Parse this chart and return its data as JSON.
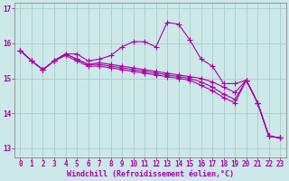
{
  "xlabel": "Windchill (Refroidissement éolien,°C)",
  "x": [
    0,
    1,
    2,
    3,
    4,
    5,
    6,
    7,
    8,
    9,
    10,
    11,
    12,
    13,
    14,
    15,
    16,
    17,
    18,
    19,
    20,
    21,
    22,
    23
  ],
  "line1": [
    15.8,
    15.5,
    15.25,
    15.5,
    15.7,
    15.7,
    15.5,
    15.55,
    15.65,
    15.9,
    16.05,
    16.05,
    15.9,
    16.6,
    16.55,
    16.1,
    15.55,
    15.35,
    14.85,
    14.85,
    14.95,
    14.3,
    13.35,
    13.3
  ],
  "line2": [
    15.8,
    15.5,
    15.25,
    15.5,
    15.7,
    15.55,
    15.4,
    15.45,
    15.4,
    15.35,
    15.3,
    15.25,
    15.2,
    15.15,
    15.1,
    15.05,
    15.0,
    14.9,
    14.75,
    14.6,
    14.95,
    14.3,
    13.35,
    13.3
  ],
  "line3": [
    15.8,
    15.5,
    15.25,
    15.5,
    15.7,
    15.55,
    15.4,
    15.4,
    15.35,
    15.3,
    15.25,
    15.2,
    15.15,
    15.1,
    15.05,
    15.0,
    14.9,
    14.75,
    14.55,
    14.4,
    14.95,
    14.3,
    13.35,
    13.3
  ],
  "line4": [
    15.8,
    15.5,
    15.25,
    15.5,
    15.65,
    15.5,
    15.35,
    15.35,
    15.3,
    15.25,
    15.2,
    15.15,
    15.1,
    15.05,
    15.0,
    14.95,
    14.8,
    14.65,
    14.45,
    14.3,
    14.95,
    14.3,
    13.35,
    13.3
  ],
  "bg_color": "#cce8e8",
  "line_color": "#aa00aa",
  "grid_color": "#aacccc",
  "axis_color": "#777777",
  "ylim": [
    12.75,
    17.15
  ],
  "yticks": [
    13,
    14,
    15,
    16,
    17
  ],
  "xticks": [
    0,
    1,
    2,
    3,
    4,
    5,
    6,
    7,
    8,
    9,
    10,
    11,
    12,
    13,
    14,
    15,
    16,
    17,
    18,
    19,
    20,
    21,
    22,
    23
  ],
  "tick_fontsize": 5.5,
  "xlabel_fontsize": 6.0
}
